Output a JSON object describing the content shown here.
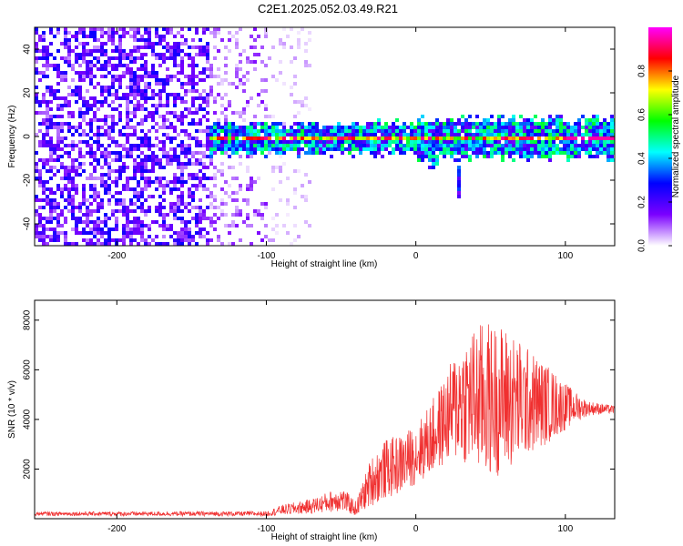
{
  "title": "C2E1.2025.052.03.49.R21",
  "chart_data": [
    {
      "type": "heatmap",
      "xlabel": "Height of straight line (km)",
      "ylabel": "Frequency (Hz)",
      "xlim": [
        -255,
        133
      ],
      "ylim": [
        -50,
        50
      ],
      "x_ticks": [
        -200,
        -100,
        0,
        100
      ],
      "y_ticks": [
        -40,
        -20,
        0,
        20,
        40
      ],
      "colorbar": {
        "label": "Normalized spectral amplitude",
        "range": [
          0,
          1
        ],
        "ticks": [
          0.0,
          0.2,
          0.4,
          0.6,
          0.8
        ],
        "tick_labels": [
          "0.0",
          "0.2",
          "0.4",
          "0.6",
          "0.8"
        ],
        "colors": [
          "#ffffff",
          "#7b00ff",
          "#0000ff",
          "#00ffff",
          "#00ff00",
          "#ffff00",
          "#ff0000",
          "#ff00ff"
        ]
      },
      "regions": [
        {
          "x_range": [
            -255,
            -140
          ],
          "freq_range": [
            -50,
            50
          ],
          "level": 0.18,
          "description_color": "#7b00ff"
        },
        {
          "x_range": [
            -140,
            -70
          ],
          "freq_range": [
            -50,
            50
          ],
          "level": 0.08
        },
        {
          "x_range": [
            -140,
            133
          ],
          "freq_range": [
            -5,
            5
          ],
          "level": 0.55
        },
        {
          "x_range": [
            20,
            133
          ],
          "freq_center": 0,
          "level": 0.85
        }
      ],
      "features": [
        {
          "x": 10,
          "freq_min": -15,
          "freq_max": 5,
          "note": "dip"
        },
        {
          "x": 28,
          "freq_min": -28,
          "freq_max": 2,
          "note": "spike"
        }
      ]
    },
    {
      "type": "line",
      "xlabel": "Height of straight line (km)",
      "ylabel": "SNR (10 * v/v)",
      "xlim": [
        -255,
        133
      ],
      "ylim": [
        0,
        8800
      ],
      "x_ticks": [
        -200,
        -100,
        0,
        100
      ],
      "y_ticks": [
        2000,
        4000,
        6000,
        8000
      ],
      "color": "#f03030",
      "envelope": [
        {
          "x": -255,
          "mean": 200,
          "amp": 80
        },
        {
          "x": -100,
          "mean": 200,
          "amp": 100
        },
        {
          "x": -90,
          "mean": 350,
          "amp": 200
        },
        {
          "x": -70,
          "mean": 500,
          "amp": 300
        },
        {
          "x": -50,
          "mean": 800,
          "amp": 500
        },
        {
          "x": -40,
          "mean": 400,
          "amp": 300
        },
        {
          "x": -30,
          "mean": 1500,
          "amp": 1000
        },
        {
          "x": -20,
          "mean": 2000,
          "amp": 1200
        },
        {
          "x": -10,
          "mean": 2200,
          "amp": 1200
        },
        {
          "x": 0,
          "mean": 2600,
          "amp": 1200
        },
        {
          "x": 10,
          "mean": 3200,
          "amp": 1500
        },
        {
          "x": 20,
          "mean": 4000,
          "amp": 1800
        },
        {
          "x": 30,
          "mean": 4800,
          "amp": 2500
        },
        {
          "x": 45,
          "mean": 4800,
          "amp": 3200
        },
        {
          "x": 60,
          "mean": 4800,
          "amp": 3000
        },
        {
          "x": 75,
          "mean": 4700,
          "amp": 2200
        },
        {
          "x": 90,
          "mean": 4600,
          "amp": 1500
        },
        {
          "x": 105,
          "mean": 4500,
          "amp": 700
        },
        {
          "x": 115,
          "mean": 4450,
          "amp": 300
        },
        {
          "x": 133,
          "mean": 4400,
          "amp": 150
        }
      ]
    }
  ]
}
